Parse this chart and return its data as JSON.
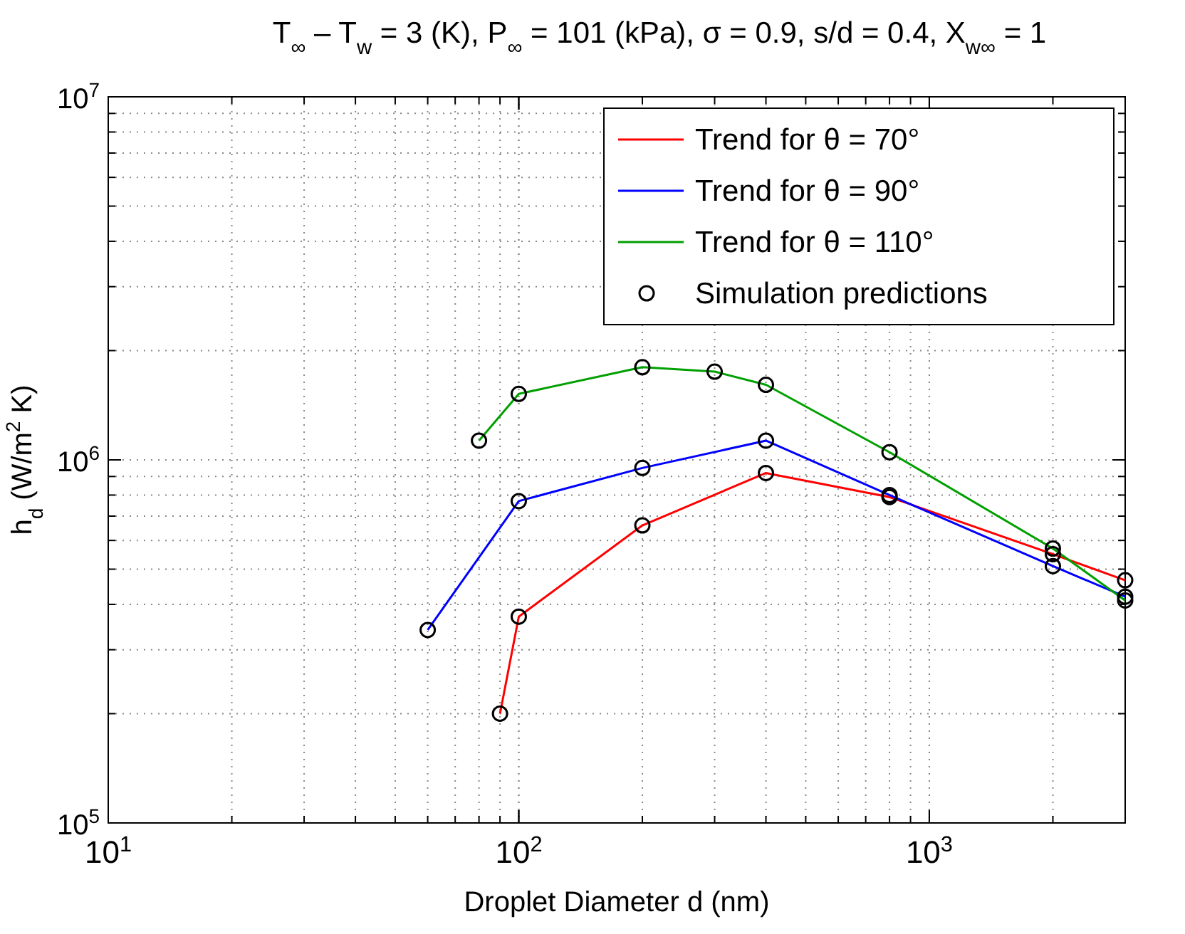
{
  "chart_data": {
    "type": "line",
    "title": "T$_{∞}$ – T$_{w}$ = 3 (K),  P$_{∞}$ = 101 (kPa),  σ = 0.9,  s/d = 0.4,  X$_{w∞}$ = 1",
    "xlabel": "Droplet Diameter  d  (nm)",
    "ylabel": "h$_{d}$ (W/m$^{2}$ K)",
    "log": "xy",
    "grid": true,
    "legend": "top right",
    "marker": "none",
    "line_style": "solid",
    "xlim": [
      10,
      3000
    ],
    "ylim": [
      100000,
      10000000
    ],
    "xticks": [
      {
        "value": 10,
        "label": "10$^{1}$"
      },
      {
        "value": 100,
        "label": "10$^{2}$"
      },
      {
        "value": 1000,
        "label": "10$^{3}$"
      }
    ],
    "yticks": [
      {
        "value": 100000,
        "label": "10$^{5}$"
      },
      {
        "value": 1000000,
        "label": "10$^{6}$"
      },
      {
        "value": 10000000,
        "label": "10$^{7}$"
      }
    ],
    "series": [
      {
        "name": "Trend for θ = 70°",
        "color": "#ff0000",
        "x": [
          90,
          100,
          200,
          400,
          800,
          2000,
          3000
        ],
        "values": [
          200000,
          370000,
          660000,
          920000,
          790000,
          550000,
          466000
        ]
      },
      {
        "name": "Trend for θ = 90°",
        "color": "#0000ff",
        "x": [
          60,
          100,
          200,
          400,
          800,
          2000,
          3000
        ],
        "values": [
          340000,
          770000,
          950000,
          1130000,
          800000,
          510000,
          420000
        ]
      },
      {
        "name": "Trend for θ = 110°",
        "color": "#00a000",
        "x": [
          80,
          100,
          200,
          300,
          400,
          800,
          2000,
          3000
        ],
        "values": [
          1130000,
          1520000,
          1800000,
          1750000,
          1610000,
          1050000,
          570000,
          410000
        ]
      },
      {
        "name": "Simulation predictions",
        "type": "scatter",
        "marker": "circle",
        "color": "#000000",
        "x": [
          90,
          100,
          200,
          400,
          800,
          2000,
          3000,
          60,
          100,
          200,
          400,
          800,
          2000,
          3000,
          80,
          100,
          200,
          300,
          400,
          800,
          2000,
          3000
        ],
        "values": [
          200000,
          370000,
          660000,
          920000,
          790000,
          550000,
          466000,
          340000,
          770000,
          950000,
          1130000,
          800000,
          510000,
          420000,
          1130000,
          1520000,
          1800000,
          1750000,
          1610000,
          1050000,
          570000,
          410000
        ]
      }
    ]
  }
}
